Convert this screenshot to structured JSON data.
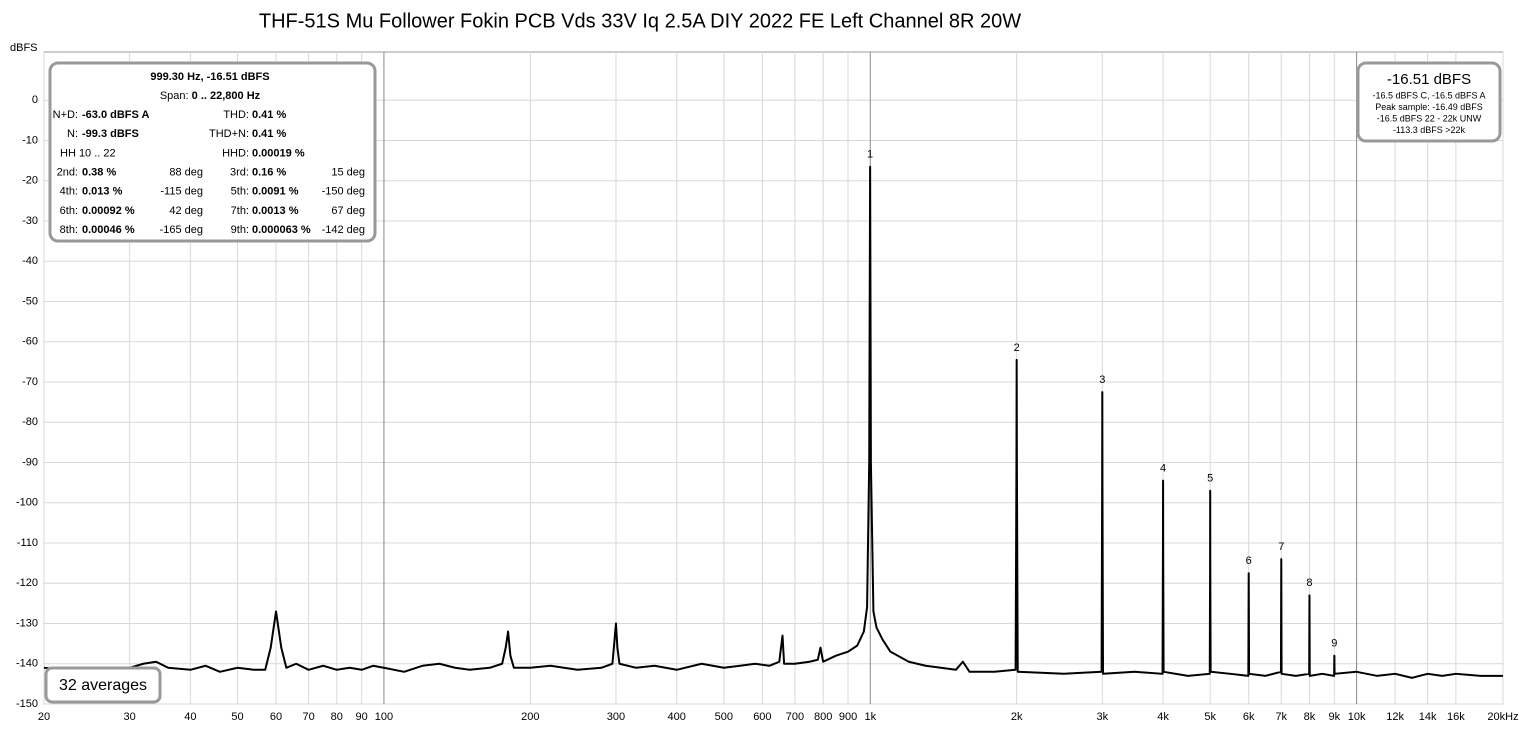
{
  "chart_data": {
    "type": "line",
    "title": "THF-51S Mu Follower Fokin PCB Vds 33V Iq 2.5A DIY 2022 FE Left Channel 8R 20W",
    "y_label": "dBFS",
    "x_scale": "log",
    "grid": true,
    "xlim": [
      20,
      20000
    ],
    "ylim": [
      -150,
      12
    ],
    "xticks": [
      20,
      30,
      40,
      50,
      60,
      70,
      80,
      90,
      100,
      200,
      300,
      400,
      500,
      600,
      700,
      800,
      900,
      {
        "value": 1000,
        "label": "1k"
      },
      {
        "value": 2000,
        "label": "2k"
      },
      {
        "value": 3000,
        "label": "3k"
      },
      {
        "value": 4000,
        "label": "4k"
      },
      {
        "value": 5000,
        "label": "5k"
      },
      {
        "value": 6000,
        "label": "6k"
      },
      {
        "value": 7000,
        "label": "7k"
      },
      {
        "value": 8000,
        "label": "8k"
      },
      {
        "value": 9000,
        "label": "9k"
      },
      {
        "value": 10000,
        "label": "10k"
      },
      {
        "value": 12000,
        "label": "12k"
      },
      {
        "value": 14000,
        "label": "14k"
      },
      {
        "value": 16000,
        "label": "16k"
      },
      {
        "value": 20000,
        "label": "20kHz"
      }
    ],
    "yticks": [
      0,
      -10,
      -20,
      -30,
      -40,
      -50,
      -60,
      -70,
      -80,
      -90,
      -100,
      -110,
      -120,
      -130,
      -140,
      -150
    ],
    "series": [
      {
        "color": "#000000",
        "x": [
          20,
          22,
          25,
          28,
          30,
          32,
          34,
          36,
          40,
          43,
          46,
          50,
          54,
          57,
          58.5,
          60,
          61.5,
          63,
          66,
          70,
          75,
          80,
          85,
          90,
          95,
          100,
          110,
          120,
          130,
          140,
          150,
          165,
          175,
          178,
          180,
          182,
          185,
          200,
          220,
          250,
          280,
          295,
          298,
          300,
          302,
          305,
          330,
          360,
          400,
          450,
          500,
          540,
          580,
          620,
          650,
          660,
          665,
          700,
          750,
          780,
          790,
          800,
          850,
          900,
          940,
          970,
          985,
          995,
          999.3,
          1003,
          1015,
          1030,
          1060,
          1100,
          1200,
          1300,
          1500,
          1550,
          1600,
          1800,
          1990,
          1998,
          2000,
          2002,
          2010,
          2500,
          2990,
          2998,
          3000,
          3002,
          3010,
          3500,
          3990,
          3998,
          4000,
          4002,
          4010,
          4500,
          4990,
          4998,
          5000,
          5002,
          5010,
          5500,
          5990,
          6000,
          6010,
          6500,
          6990,
          7000,
          7010,
          7500,
          7990,
          8000,
          8010,
          8500,
          8990,
          9000,
          9010,
          10000,
          11000,
          12000,
          13000,
          14000,
          15000,
          16000,
          18000,
          20000
        ],
        "values": [
          -141,
          -141.5,
          -141,
          -141,
          -141,
          -140,
          -139.5,
          -141,
          -141.5,
          -140.5,
          -142,
          -141,
          -141.5,
          -141.5,
          -136,
          -127,
          -136,
          -141,
          -140,
          -141.5,
          -140.5,
          -141.5,
          -141,
          -141.5,
          -140.5,
          -141,
          -142,
          -140.5,
          -140,
          -141,
          -141.5,
          -141,
          -140,
          -136,
          -132,
          -138,
          -141,
          -141,
          -140.5,
          -141.5,
          -141,
          -140,
          -134,
          -130,
          -136,
          -140,
          -141,
          -140.5,
          -141.5,
          -140,
          -141,
          -140.5,
          -140,
          -140.5,
          -139.5,
          -133,
          -140,
          -140,
          -139.5,
          -139,
          -136,
          -139.5,
          -138,
          -137,
          -135.5,
          -132,
          -126,
          -90,
          -16.51,
          -90,
          -127,
          -131,
          -134,
          -137,
          -139.5,
          -140.5,
          -141.5,
          -139.5,
          -142,
          -142,
          -141.5,
          -90,
          -64.5,
          -90,
          -142,
          -142.5,
          -142,
          -95,
          -72.5,
          -95,
          -142.5,
          -142,
          -142.5,
          -110,
          -94.5,
          -110,
          -142,
          -143,
          -142.5,
          -115,
          -97,
          -115,
          -142,
          -142.5,
          -143,
          -117.5,
          -142.5,
          -143,
          -142,
          -114,
          -142.5,
          -143,
          -142.5,
          -123,
          -143,
          -142.5,
          -143,
          -138,
          -142.5,
          -142,
          -143,
          -142.5,
          -143.5,
          -142.5,
          -143,
          -142.5,
          -143,
          -143
        ]
      }
    ],
    "harmonic_markers": [
      {
        "label": "1",
        "x": 999.3,
        "y": -16.51
      },
      {
        "label": "2",
        "x": 2000,
        "y": -64.5
      },
      {
        "label": "3",
        "x": 3000,
        "y": -72.5
      },
      {
        "label": "4",
        "x": 4000,
        "y": -94.5
      },
      {
        "label": "5",
        "x": 5000,
        "y": -97
      },
      {
        "label": "6",
        "x": 6000,
        "y": -117.5
      },
      {
        "label": "7",
        "x": 7000,
        "y": -114
      },
      {
        "label": "8",
        "x": 8000,
        "y": -123
      },
      {
        "label": "9",
        "x": 9000,
        "y": -138
      }
    ],
    "info_box": {
      "line": "999.30 Hz, -16.51 dBFS",
      "span_label": "Span:",
      "span_value": "0 .. 22,800 Hz",
      "rows": [
        [
          [
            "N+D:",
            "-63.0 dBFS A"
          ],
          [
            "THD:",
            "0.41 %"
          ]
        ],
        [
          [
            "N:",
            "-99.3 dBFS"
          ],
          [
            "THD+N:",
            "0.41 %"
          ]
        ],
        [
          [
            "HH 10 .. 22"
          ],
          [
            "HHD:",
            "0.00019 %"
          ]
        ],
        [
          [
            "2nd:",
            "0.38 %",
            "88 deg"
          ],
          [
            "3rd:",
            "0.16 %",
            "15 deg"
          ]
        ],
        [
          [
            "4th:",
            "0.013 %",
            "-115 deg"
          ],
          [
            "5th:",
            "0.0091 %",
            "-150 deg"
          ]
        ],
        [
          [
            "6th:",
            "0.00092 %",
            "42 deg"
          ],
          [
            "7th:",
            "0.0013 %",
            "67 deg"
          ]
        ],
        [
          [
            "8th:",
            "0.00046 %",
            "-165 deg"
          ],
          [
            "9th:",
            "0.000063 %",
            "-142 deg"
          ]
        ]
      ]
    },
    "level_box": {
      "title": "-16.51 dBFS",
      "lines": [
        "-16.5 dBFS C, -16.5 dBFS A",
        "Peak sample: -16.49 dBFS",
        "-16.5 dBFS 22 - 22k UNW",
        "-113.3 dBFS >22k"
      ]
    },
    "averages": "32 averages"
  }
}
